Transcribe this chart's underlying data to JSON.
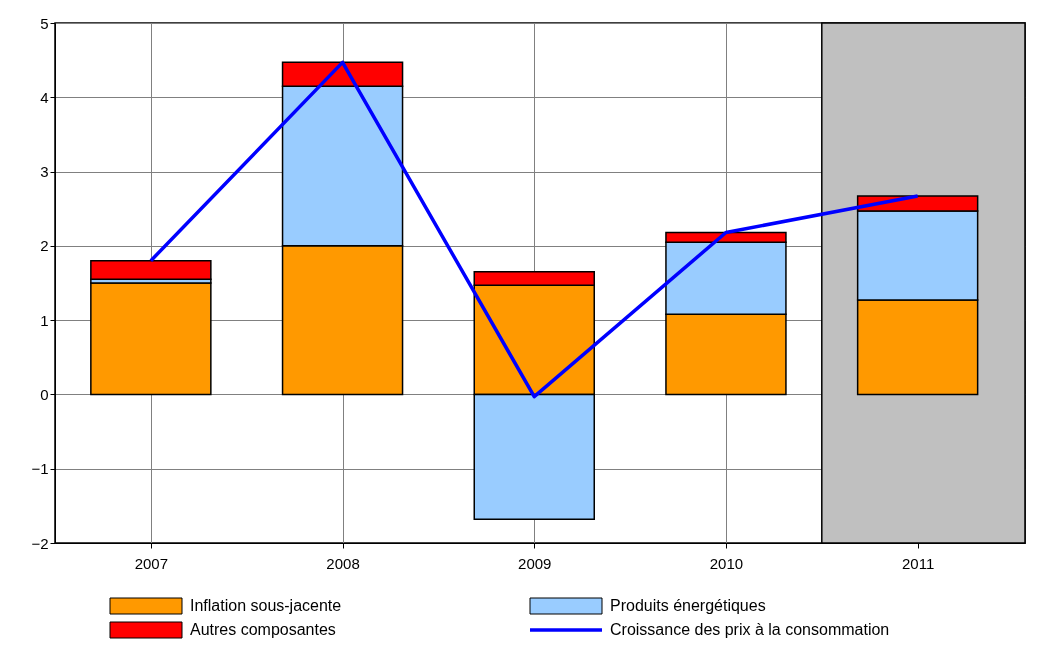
{
  "chart_data": {
    "type": "bar",
    "stacked": true,
    "x": [
      2007,
      2008,
      2009,
      2010,
      2011
    ],
    "xlim": [
      2006.5,
      2011.56
    ],
    "xticks": [
      2007,
      2008,
      2009,
      2010,
      2011
    ],
    "ylim": [
      -2,
      5
    ],
    "yticks": [
      -2,
      -1,
      0,
      1,
      2,
      3,
      4,
      5
    ],
    "grid": true,
    "legend": "bottom",
    "bands": [
      {
        "axis": "x",
        "from": 2010.5,
        "to": 2011.56,
        "color": "#c0c0c0"
      }
    ],
    "series": [
      {
        "name": "Inflation sous-jacente",
        "color": "#ff9900",
        "values": [
          1.5,
          2.0,
          1.47,
          1.08,
          1.27
        ]
      },
      {
        "name": "Produits énergétiques",
        "color": "#99ccff",
        "values": [
          0.05,
          2.15,
          -1.68,
          0.97,
          1.2
        ]
      },
      {
        "name": "Autres composantes",
        "color": "#ff0000",
        "values": [
          0.25,
          0.32,
          0.18,
          0.13,
          0.2
        ]
      },
      {
        "name": "Croissance des prix à la consommation",
        "type": "line",
        "color": "#0000ff",
        "values": [
          1.8,
          4.47,
          -0.03,
          2.18,
          2.67
        ]
      }
    ]
  }
}
